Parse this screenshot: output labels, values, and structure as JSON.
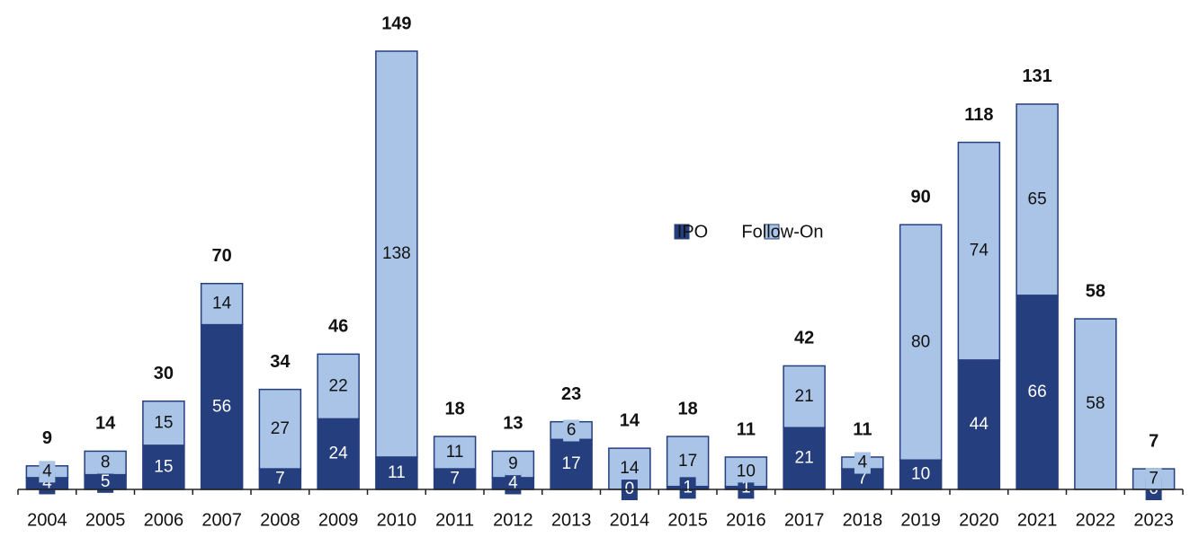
{
  "chart_data": {
    "type": "stacked-bar",
    "categories": [
      "2004",
      "2005",
      "2006",
      "2007",
      "2008",
      "2009",
      "2010",
      "2011",
      "2012",
      "2013",
      "2014",
      "2015",
      "2016",
      "2017",
      "2018",
      "2019",
      "2020",
      "2021",
      "2022",
      "2023"
    ],
    "series": [
      {
        "name": "IPO",
        "color": "#253e7e",
        "values": [
          4,
          5,
          15,
          56,
          7,
          24,
          11,
          7,
          4,
          17,
          0,
          1,
          1,
          21,
          7,
          10,
          44,
          66,
          null,
          0
        ]
      },
      {
        "name": "Follow-On",
        "color": "#a9c4e6",
        "values": [
          4,
          8,
          15,
          14,
          27,
          22,
          138,
          11,
          9,
          6,
          14,
          17,
          10,
          21,
          4,
          80,
          74,
          65,
          58,
          7
        ]
      }
    ],
    "totals": [
      9,
      14,
      30,
      70,
      34,
      46,
      149,
      18,
      13,
      23,
      14,
      18,
      11,
      42,
      11,
      90,
      118,
      131,
      58,
      7
    ]
  }
}
